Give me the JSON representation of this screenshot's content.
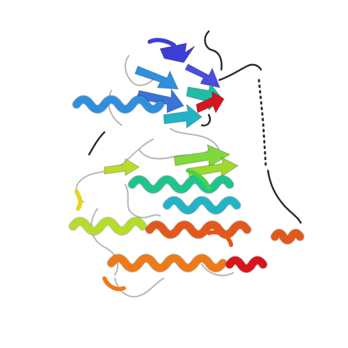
{
  "image": {
    "subject": "",
    "background": "#ffffff",
    "palette": {
      "blue": "#3b3fd6",
      "light_blue": "#2f8fdc",
      "cyan": "#22b3c7",
      "teal": "#1fc38c",
      "green": "#47d247",
      "yellow_green": "#b8dc2a",
      "yellow": "#e8d21e",
      "orange": "#ee7a18",
      "dark_orange": "#e2581b",
      "red": "#d8141c",
      "loop_gray": "#b9b9b9",
      "loop_dark": "#2b2b2b"
    }
  }
}
